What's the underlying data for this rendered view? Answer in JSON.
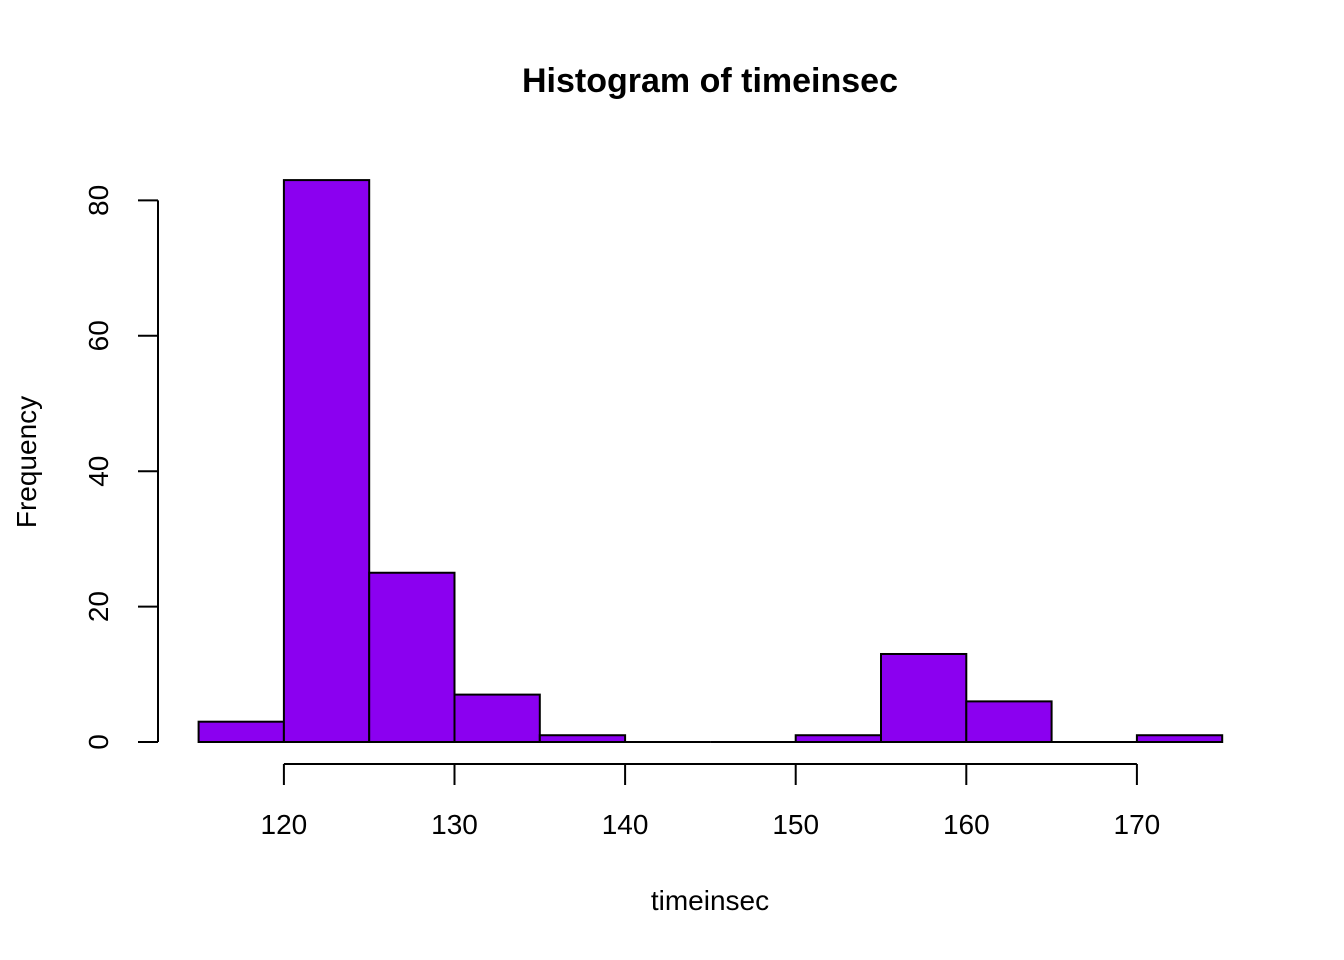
{
  "chart_data": {
    "type": "bar",
    "subtype": "histogram",
    "title": "Histogram of timeinsec",
    "xlabel": "timeinsec",
    "ylabel": "Frequency",
    "bin_width": 5,
    "bins": [
      {
        "start": 115,
        "end": 120,
        "count": 3
      },
      {
        "start": 120,
        "end": 125,
        "count": 83
      },
      {
        "start": 125,
        "end": 130,
        "count": 25
      },
      {
        "start": 130,
        "end": 135,
        "count": 7
      },
      {
        "start": 135,
        "end": 140,
        "count": 1
      },
      {
        "start": 140,
        "end": 145,
        "count": 0
      },
      {
        "start": 145,
        "end": 150,
        "count": 0
      },
      {
        "start": 150,
        "end": 155,
        "count": 1
      },
      {
        "start": 155,
        "end": 160,
        "count": 13
      },
      {
        "start": 160,
        "end": 165,
        "count": 6
      },
      {
        "start": 165,
        "end": 170,
        "count": 0
      },
      {
        "start": 170,
        "end": 175,
        "count": 1
      }
    ],
    "xlim": [
      115,
      175
    ],
    "ylim": [
      0,
      83
    ],
    "x_ticks": [
      120,
      130,
      140,
      150,
      160,
      170
    ],
    "y_ticks": [
      0,
      20,
      40,
      60,
      80
    ],
    "bar_color": "#8B00F0",
    "grid": false,
    "legend": "none"
  }
}
